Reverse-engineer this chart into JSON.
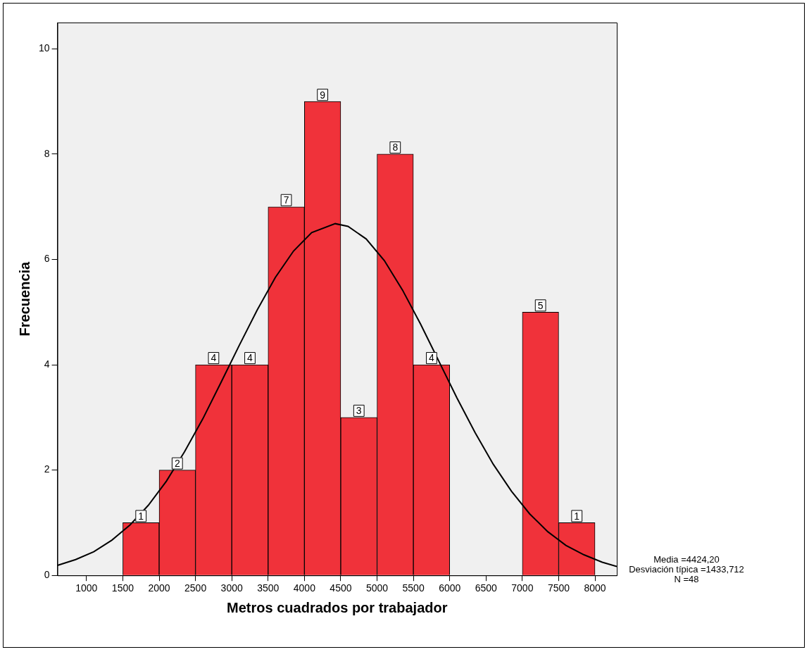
{
  "chart_data": {
    "type": "histogram",
    "xlabel": "Metros cuadrados por trabajador",
    "ylabel": "Frecuencia",
    "bins": [
      1500,
      2000,
      2500,
      3000,
      3500,
      4000,
      4500,
      5000,
      5500,
      6000,
      6500,
      7000,
      7500,
      8000
    ],
    "values": [
      1,
      2,
      4,
      4,
      7,
      9,
      3,
      8,
      4,
      0,
      0,
      5,
      1
    ],
    "value_labels": [
      "1",
      "2",
      "4",
      "4",
      "7",
      "9",
      "3",
      "8",
      "4",
      null,
      null,
      "5",
      "1"
    ],
    "color": "#f0323a",
    "series": [
      {
        "type": "line",
        "color": "#000000",
        "x": [
          600,
          850,
          1100,
          1350,
          1600,
          1850,
          2100,
          2350,
          2600,
          2850,
          3100,
          3350,
          3600,
          3850,
          4100,
          4424,
          4600,
          4850,
          5100,
          5350,
          5600,
          5850,
          6100,
          6350,
          6600,
          6850,
          7100,
          7350,
          7600,
          7850,
          8100,
          8300
        ],
        "values": [
          0.19,
          0.3,
          0.45,
          0.67,
          0.96,
          1.33,
          1.79,
          2.35,
          2.97,
          3.66,
          4.36,
          5.04,
          5.66,
          6.16,
          6.51,
          6.68,
          6.63,
          6.39,
          5.98,
          5.42,
          4.77,
          4.07,
          3.37,
          2.71,
          2.11,
          1.6,
          1.17,
          0.83,
          0.57,
          0.39,
          0.25,
          0.17
        ]
      }
    ],
    "xlim": [
      600,
      8300
    ],
    "xticks": [
      1000,
      1500,
      2000,
      2500,
      3000,
      3500,
      4000,
      4500,
      5000,
      5500,
      6000,
      6500,
      7000,
      7500,
      8000
    ],
    "ylim": [
      0,
      10.5
    ],
    "yticks": [
      0,
      2,
      4,
      6,
      8,
      10
    ],
    "grid": false,
    "legend": false,
    "annotations": [
      "Media =4424,20",
      "Desviación típica =1433,712",
      "N =48"
    ]
  }
}
